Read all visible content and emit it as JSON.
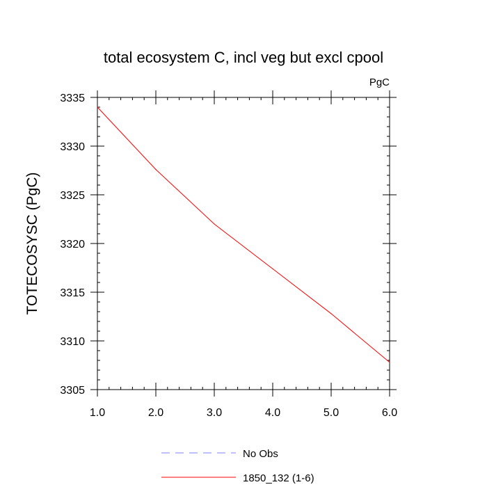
{
  "chart_data": {
    "type": "line",
    "title": "total ecosystem C, incl veg but excl cpool",
    "unit_label": "PgC",
    "ylabel": "TOTECOSYSC  (PgC)",
    "xlabel": "",
    "xlim": [
      1.0,
      6.0
    ],
    "ylim": [
      3305,
      3335
    ],
    "x_ticks": [
      "1.0",
      "2.0",
      "3.0",
      "4.0",
      "5.0",
      "6.0"
    ],
    "y_ticks": [
      "3305",
      "3310",
      "3315",
      "3320",
      "3325",
      "3330",
      "3335"
    ],
    "x_minor_step": 0.2,
    "y_minor_step": 1,
    "series": [
      {
        "name": "No Obs",
        "color": "#8080ff",
        "dash": "dashed",
        "x": [],
        "values": []
      },
      {
        "name": "1850_132 (1-6)",
        "color": "#ff0000",
        "dash": "solid",
        "x": [
          1,
          2,
          3,
          4,
          5,
          6
        ],
        "values": [
          3334.0,
          3327.6,
          3322.0,
          3317.4,
          3312.8,
          3307.8
        ]
      }
    ],
    "legend_position": "bottom"
  }
}
